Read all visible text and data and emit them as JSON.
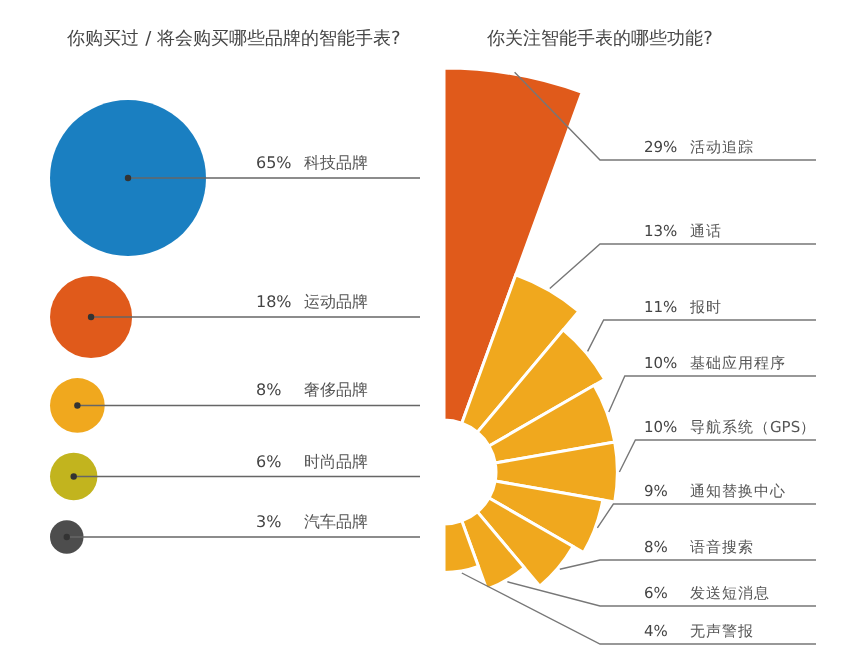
{
  "chart_data": [
    {
      "type": "other",
      "title": "你购买过 / 将会购买哪些品牌的智能手表?",
      "categories": [
        "科技品牌",
        "运动品牌",
        "奢侈品牌",
        "时尚品牌",
        "汽车品牌"
      ],
      "values": [
        65,
        18,
        8,
        6,
        3
      ],
      "value_labels": [
        "65%",
        "18%",
        "8%",
        "6%",
        "3%"
      ],
      "colors": [
        "#1a7fc1",
        "#e05a1b",
        "#f0a81e",
        "#c2b41e",
        "#4d4d4d"
      ]
    },
    {
      "type": "other",
      "title": "你关注智能手表的哪些功能?",
      "categories": [
        "活动追踪",
        "通话",
        "报时",
        "基础应用程序",
        "导航系统（GPS）",
        "通知替换中心",
        "语音搜索",
        "发送短消息",
        "无声警报"
      ],
      "values": [
        29,
        13,
        11,
        10,
        10,
        9,
        8,
        6,
        4
      ],
      "value_labels": [
        "29%",
        "13%",
        "11%",
        "10%",
        "10%",
        "9%",
        "8%",
        "6%",
        "4%"
      ],
      "colors": [
        "#e05a1b",
        "#f0a81e",
        "#f0a81e",
        "#f0a81e",
        "#f0a81e",
        "#f0a81e",
        "#f0a81e",
        "#f0a81e",
        "#f0a81e"
      ]
    }
  ]
}
